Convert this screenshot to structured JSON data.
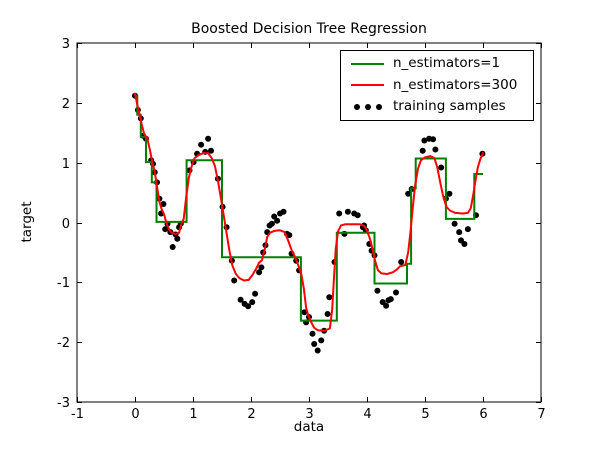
{
  "figure": {
    "title": "Boosted Decision Tree Regression",
    "xlabel": "data",
    "ylabel": "target",
    "background_color": "#ffffff",
    "axis_color": "#000000"
  },
  "legend": {
    "position": "upper right",
    "items": [
      {
        "label": "n_estimators=1",
        "marker": "line",
        "color": "#008000"
      },
      {
        "label": "n_estimators=300",
        "marker": "line",
        "color": "#ff0000"
      },
      {
        "label": "training samples",
        "marker": "dots",
        "color": "#000000"
      }
    ]
  },
  "chart_data": {
    "type": "line",
    "title": "Boosted Decision Tree Regression",
    "xlabel": "data",
    "ylabel": "target",
    "xlim": [
      -1,
      7
    ],
    "ylim": [
      -3,
      3
    ],
    "x_ticks": [
      -1,
      0,
      1,
      2,
      3,
      4,
      5,
      6,
      7
    ],
    "y_ticks": [
      -3,
      -2,
      -1,
      0,
      1,
      2,
      3
    ],
    "grid": false,
    "legend_position": "upper right",
    "series": [
      {
        "name": "n_estimators=1",
        "render": "step",
        "color": "#008000",
        "linewidth": 2,
        "steps": [
          [
            0.0,
            0.04,
            2.12
          ],
          [
            0.04,
            0.1,
            1.8
          ],
          [
            0.1,
            0.19,
            1.43
          ],
          [
            0.19,
            0.29,
            1.01
          ],
          [
            0.29,
            0.37,
            0.67
          ],
          [
            0.37,
            0.89,
            0.01
          ],
          [
            0.89,
            1.5,
            1.04
          ],
          [
            1.5,
            2.86,
            -0.58
          ],
          [
            2.86,
            3.48,
            -1.64
          ],
          [
            3.48,
            4.13,
            -0.17
          ],
          [
            4.13,
            4.69,
            -1.02
          ],
          [
            4.69,
            4.76,
            -0.69
          ],
          [
            4.76,
            4.84,
            0.57
          ],
          [
            4.84,
            5.36,
            1.07
          ],
          [
            5.36,
            5.85,
            0.06
          ],
          [
            5.85,
            6.0,
            0.81
          ]
        ]
      },
      {
        "name": "n_estimators=300",
        "render": "line",
        "color": "#ff0000",
        "linewidth": 2,
        "points": [
          [
            0.0,
            2.15
          ],
          [
            0.04,
            1.97
          ],
          [
            0.08,
            1.8
          ],
          [
            0.12,
            1.62
          ],
          [
            0.16,
            1.47
          ],
          [
            0.21,
            1.41
          ],
          [
            0.26,
            1.2
          ],
          [
            0.3,
            1.0
          ],
          [
            0.34,
            0.85
          ],
          [
            0.38,
            0.6
          ],
          [
            0.42,
            0.35
          ],
          [
            0.46,
            0.22
          ],
          [
            0.5,
            0.14
          ],
          [
            0.54,
            0.0
          ],
          [
            0.58,
            -0.1
          ],
          [
            0.63,
            -0.17
          ],
          [
            0.7,
            -0.19
          ],
          [
            0.76,
            -0.17
          ],
          [
            0.8,
            -0.02
          ],
          [
            0.84,
            0.06
          ],
          [
            0.88,
            0.4
          ],
          [
            0.93,
            0.75
          ],
          [
            0.98,
            0.95
          ],
          [
            1.03,
            1.08
          ],
          [
            1.1,
            1.13
          ],
          [
            1.18,
            1.16
          ],
          [
            1.26,
            1.16
          ],
          [
            1.32,
            1.08
          ],
          [
            1.38,
            0.94
          ],
          [
            1.43,
            0.7
          ],
          [
            1.48,
            0.42
          ],
          [
            1.53,
            0.12
          ],
          [
            1.58,
            -0.18
          ],
          [
            1.63,
            -0.48
          ],
          [
            1.68,
            -0.72
          ],
          [
            1.74,
            -0.86
          ],
          [
            1.8,
            -0.93
          ],
          [
            1.88,
            -0.97
          ],
          [
            1.96,
            -0.96
          ],
          [
            2.03,
            -0.87
          ],
          [
            2.09,
            -0.77
          ],
          [
            2.14,
            -0.67
          ],
          [
            2.19,
            -0.63
          ],
          [
            2.24,
            -0.44
          ],
          [
            2.28,
            -0.24
          ],
          [
            2.33,
            -0.17
          ],
          [
            2.4,
            -0.14
          ],
          [
            2.5,
            -0.13
          ],
          [
            2.58,
            -0.16
          ],
          [
            2.64,
            -0.3
          ],
          [
            2.7,
            -0.46
          ],
          [
            2.76,
            -0.58
          ],
          [
            2.82,
            -0.73
          ],
          [
            2.87,
            -0.88
          ],
          [
            2.91,
            -1.1
          ],
          [
            2.95,
            -1.42
          ],
          [
            2.99,
            -1.56
          ],
          [
            3.04,
            -1.67
          ],
          [
            3.09,
            -1.76
          ],
          [
            3.15,
            -1.8
          ],
          [
            3.27,
            -1.81
          ],
          [
            3.36,
            -1.77
          ],
          [
            3.4,
            -1.45
          ],
          [
            3.43,
            -0.95
          ],
          [
            3.46,
            -0.45
          ],
          [
            3.5,
            -0.15
          ],
          [
            3.55,
            -0.05
          ],
          [
            3.62,
            -0.03
          ],
          [
            3.75,
            -0.03
          ],
          [
            3.88,
            -0.03
          ],
          [
            3.96,
            -0.06
          ],
          [
            4.01,
            -0.16
          ],
          [
            4.06,
            -0.3
          ],
          [
            4.1,
            -0.47
          ],
          [
            4.14,
            -0.64
          ],
          [
            4.19,
            -0.8
          ],
          [
            4.25,
            -0.85
          ],
          [
            4.35,
            -0.86
          ],
          [
            4.45,
            -0.83
          ],
          [
            4.52,
            -0.78
          ],
          [
            4.57,
            -0.73
          ],
          [
            4.66,
            -0.71
          ],
          [
            4.71,
            -0.5
          ],
          [
            4.75,
            -0.15
          ],
          [
            4.79,
            0.25
          ],
          [
            4.83,
            0.62
          ],
          [
            4.88,
            0.9
          ],
          [
            4.93,
            1.04
          ],
          [
            5.0,
            1.09
          ],
          [
            5.09,
            1.11
          ],
          [
            5.16,
            1.08
          ],
          [
            5.21,
            0.93
          ],
          [
            5.26,
            0.68
          ],
          [
            5.31,
            0.45
          ],
          [
            5.37,
            0.26
          ],
          [
            5.43,
            0.2
          ],
          [
            5.52,
            0.16
          ],
          [
            5.65,
            0.15
          ],
          [
            5.74,
            0.16
          ],
          [
            5.79,
            0.24
          ],
          [
            5.83,
            0.45
          ],
          [
            5.87,
            0.7
          ],
          [
            5.91,
            0.92
          ],
          [
            5.95,
            1.05
          ],
          [
            6.0,
            1.16
          ]
        ]
      },
      {
        "name": "training samples",
        "render": "scatter",
        "color": "#000000",
        "marker_radius": 3,
        "points": [
          [
            0.0,
            2.12
          ],
          [
            0.05,
            1.88
          ],
          [
            0.1,
            1.74
          ],
          [
            0.14,
            1.45
          ],
          [
            0.19,
            1.4
          ],
          [
            0.28,
            1.04
          ],
          [
            0.31,
            0.98
          ],
          [
            0.34,
            0.84
          ],
          [
            0.38,
            0.67
          ],
          [
            0.42,
            0.4
          ],
          [
            0.45,
            0.15
          ],
          [
            0.49,
            0.31
          ],
          [
            0.52,
            -0.11
          ],
          [
            0.56,
            -0.02
          ],
          [
            0.61,
            -0.16
          ],
          [
            0.65,
            -0.41
          ],
          [
            0.7,
            -0.2
          ],
          [
            0.73,
            -0.27
          ],
          [
            0.76,
            -0.08
          ],
          [
            0.79,
            -0.02
          ],
          [
            0.94,
            0.87
          ],
          [
            1.01,
            1.01
          ],
          [
            1.07,
            1.15
          ],
          [
            1.14,
            1.3
          ],
          [
            1.21,
            1.18
          ],
          [
            1.26,
            1.4
          ],
          [
            1.31,
            1.2
          ],
          [
            1.43,
            0.73
          ],
          [
            1.51,
            0.26
          ],
          [
            1.58,
            -0.08
          ],
          [
            1.67,
            -0.64
          ],
          [
            1.71,
            -0.97
          ],
          [
            1.82,
            -1.29
          ],
          [
            1.89,
            -1.36
          ],
          [
            1.95,
            -1.4
          ],
          [
            2.02,
            -1.33
          ],
          [
            2.07,
            -1.19
          ],
          [
            2.14,
            -0.83
          ],
          [
            2.18,
            -0.75
          ],
          [
            2.21,
            -0.5
          ],
          [
            2.25,
            -0.38
          ],
          [
            2.28,
            -0.16
          ],
          [
            2.32,
            -0.05
          ],
          [
            2.36,
            -0.02
          ],
          [
            2.4,
            0.1
          ],
          [
            2.45,
            0.03
          ],
          [
            2.5,
            0.15
          ],
          [
            2.56,
            0.18
          ],
          [
            2.62,
            -0.19
          ],
          [
            2.66,
            -0.21
          ],
          [
            2.7,
            -0.52
          ],
          [
            2.78,
            -0.64
          ],
          [
            2.83,
            -0.8
          ],
          [
            2.92,
            -1.5
          ],
          [
            2.95,
            -1.67
          ],
          [
            3.0,
            -1.58
          ],
          [
            3.06,
            -1.86
          ],
          [
            3.09,
            -2.03
          ],
          [
            3.15,
            -2.14
          ],
          [
            3.21,
            -1.97
          ],
          [
            3.26,
            -1.81
          ],
          [
            3.32,
            -1.53
          ],
          [
            3.35,
            -1.25
          ],
          [
            3.44,
            -0.66
          ],
          [
            3.52,
            0.15
          ],
          [
            3.61,
            -0.19
          ],
          [
            3.67,
            0.18
          ],
          [
            3.78,
            0.15
          ],
          [
            3.84,
            0.12
          ],
          [
            3.93,
            -0.08
          ],
          [
            3.95,
            -0.05
          ],
          [
            3.98,
            -0.13
          ],
          [
            4.04,
            -0.36
          ],
          [
            4.08,
            -0.47
          ],
          [
            4.13,
            -0.55
          ],
          [
            4.18,
            -1.14
          ],
          [
            4.27,
            -1.33
          ],
          [
            4.33,
            -1.39
          ],
          [
            4.37,
            -1.3
          ],
          [
            4.41,
            -1.28
          ],
          [
            4.5,
            -1.17
          ],
          [
            4.59,
            -0.66
          ],
          [
            4.71,
            0.48
          ],
          [
            4.77,
            0.56
          ],
          [
            4.96,
            1.2
          ],
          [
            4.99,
            1.37
          ],
          [
            5.07,
            1.4
          ],
          [
            5.14,
            1.39
          ],
          [
            5.18,
            1.22
          ],
          [
            5.28,
            0.92
          ],
          [
            5.36,
            0.4
          ],
          [
            5.42,
            0.48
          ],
          [
            5.51,
            -0.02
          ],
          [
            5.59,
            -0.16
          ],
          [
            5.62,
            -0.3
          ],
          [
            5.68,
            -0.36
          ],
          [
            5.74,
            -0.11
          ],
          [
            5.88,
            0.12
          ],
          [
            5.99,
            1.15
          ]
        ]
      }
    ]
  }
}
